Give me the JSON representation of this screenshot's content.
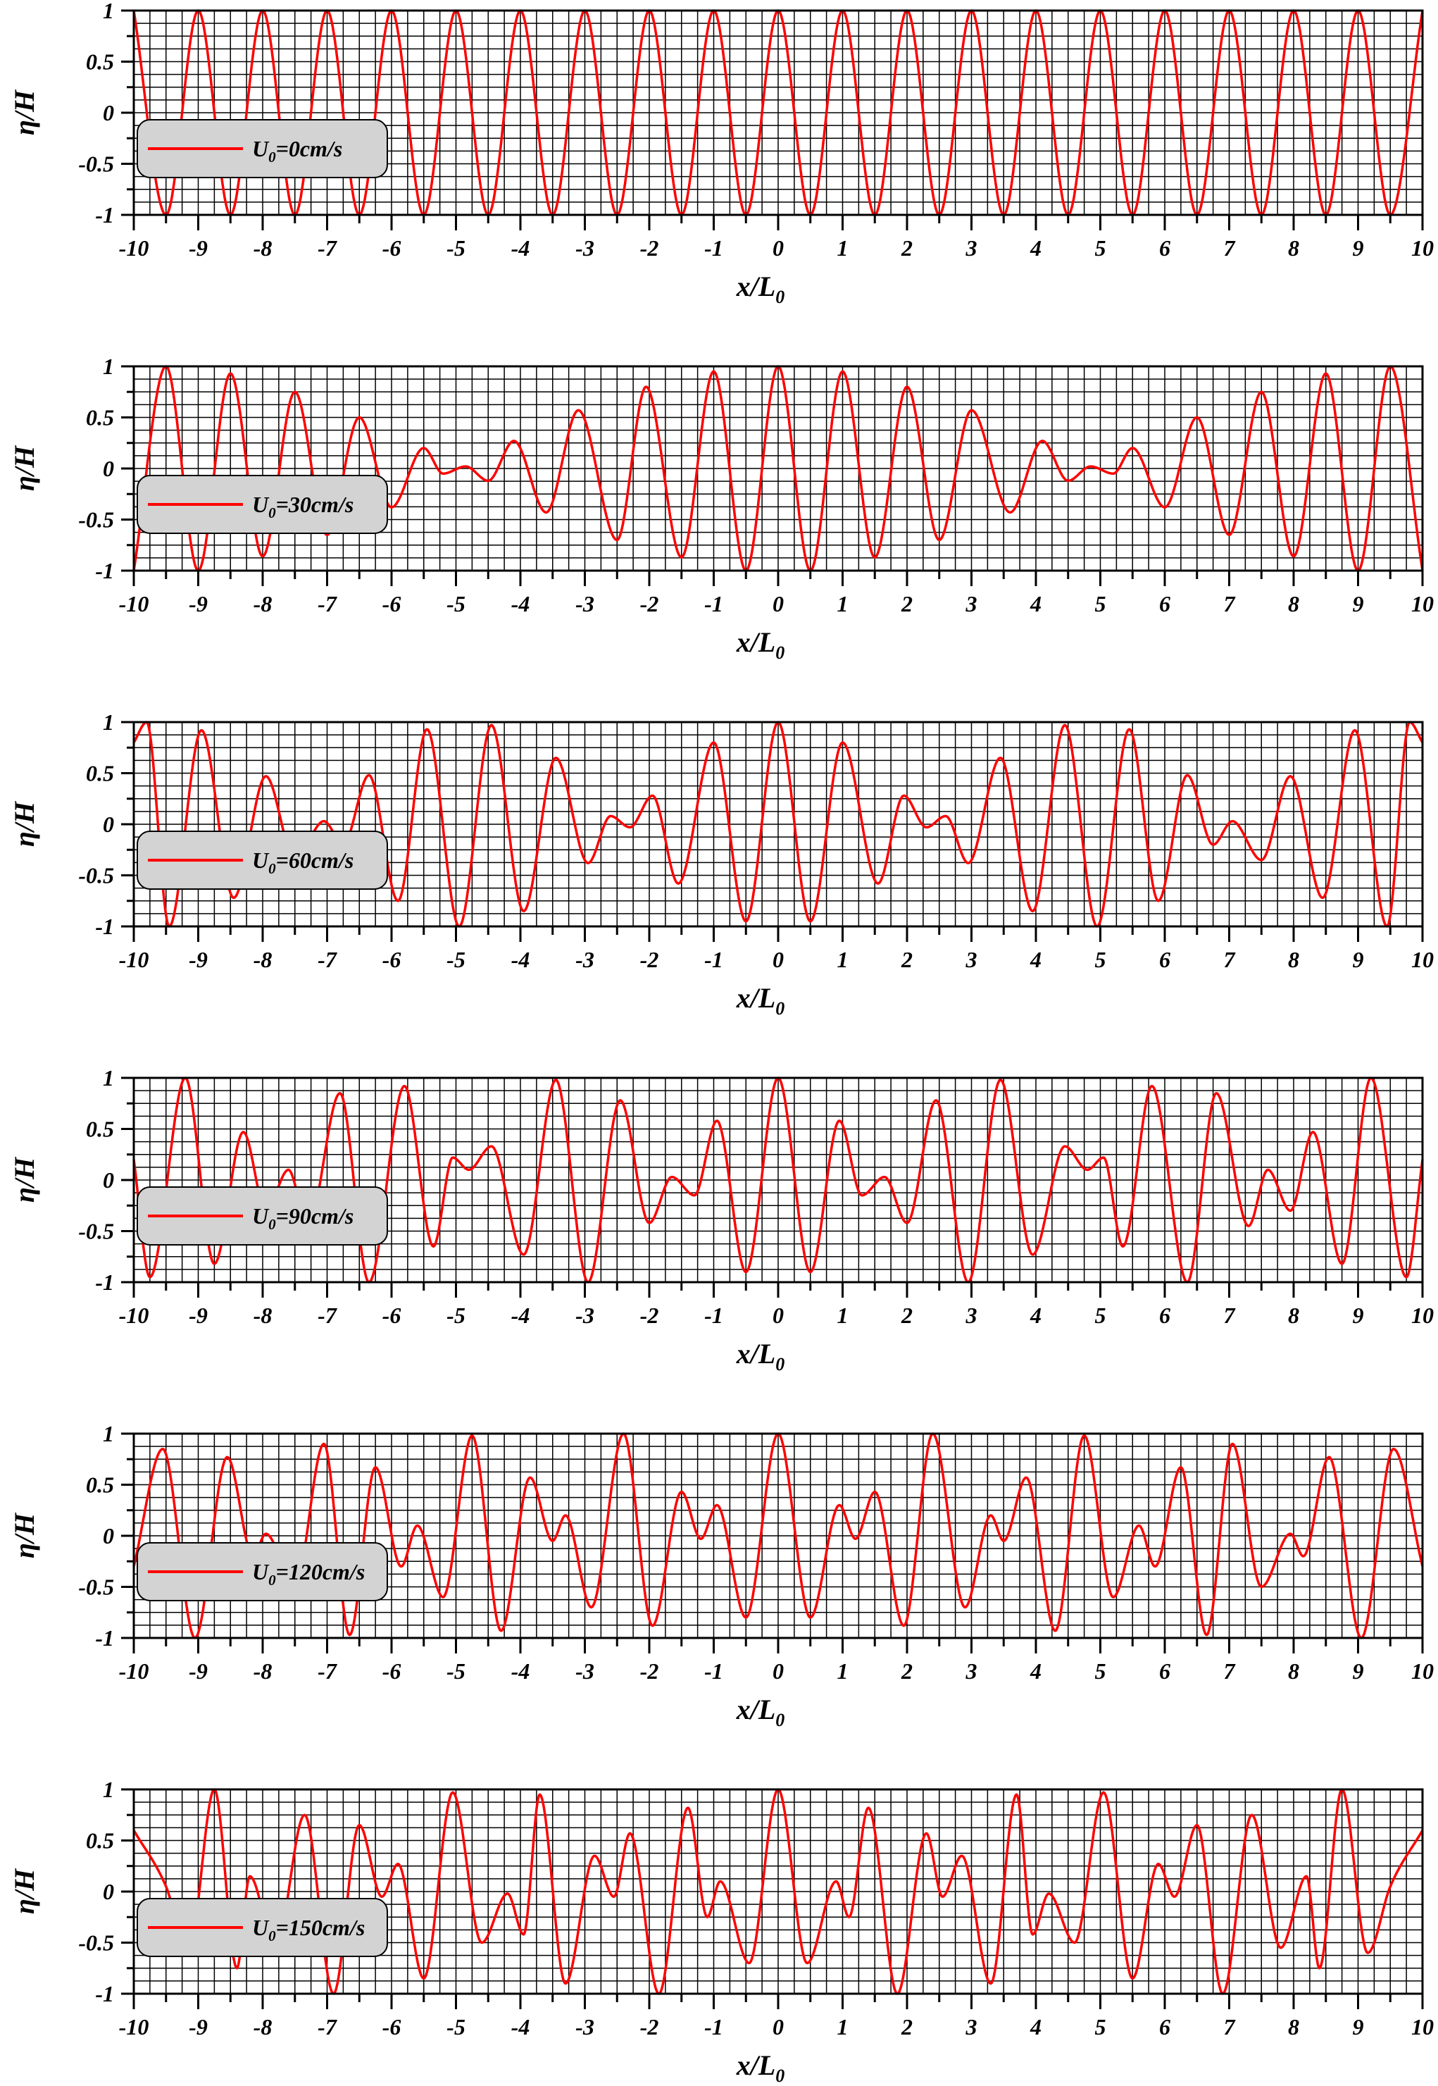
{
  "chart_data": [
    {
      "type": "line",
      "xlabel": "x/L",
      "xlabel_sub": "0",
      "ylabel": "η/H",
      "xlim": [
        -10,
        10
      ],
      "ylim": [
        -1,
        1
      ],
      "x_ticks": [
        "-10",
        "-9",
        "-8",
        "-7",
        "-6",
        "-5",
        "-4",
        "-3",
        "-2",
        "-1",
        "0",
        "1",
        "2",
        "3",
        "4",
        "5",
        "6",
        "7",
        "8",
        "9",
        "10"
      ],
      "y_ticks": [
        "1",
        "0.5",
        "0",
        "-0.5",
        "-1"
      ],
      "grid": true,
      "legend_position": "left",
      "series": [
        {
          "name": "U0=0cm/s",
          "legend_main": "U",
          "legend_sub": "0",
          "legend_rest": "=0cm/s",
          "color": "#ff0000",
          "x": [
            -10,
            -9.5,
            -9,
            -8.5,
            -8,
            -7.5,
            -7,
            -6.5,
            -6,
            -5.5,
            -5,
            -4.5,
            -4,
            -3.5,
            -3,
            -2.5,
            -2,
            -1.5,
            -1,
            -0.5,
            0,
            0.5,
            1,
            1.5,
            2,
            2.5,
            3,
            3.5,
            4,
            4.5,
            5,
            5.5,
            6,
            6.5,
            7,
            7.5,
            8,
            8.5,
            9,
            9.5,
            10
          ],
          "y": [
            1,
            -1,
            1,
            -1,
            1,
            -1,
            1,
            -1,
            1,
            -1,
            1,
            -1,
            1,
            -1,
            1,
            -1,
            1,
            -1,
            1,
            -1,
            1,
            -1,
            1,
            -1,
            1,
            -1,
            1,
            -1,
            1,
            -1,
            1,
            -1,
            1,
            -1,
            1,
            -1,
            1,
            -1,
            1,
            -1,
            1
          ]
        }
      ]
    },
    {
      "type": "line",
      "xlabel": "x/L",
      "xlabel_sub": "0",
      "ylabel": "η/H",
      "xlim": [
        -10,
        10
      ],
      "ylim": [
        -1,
        1
      ],
      "x_ticks": [
        "-10",
        "-9",
        "-8",
        "-7",
        "-6",
        "-5",
        "-4",
        "-3",
        "-2",
        "-1",
        "0",
        "1",
        "2",
        "3",
        "4",
        "5",
        "6",
        "7",
        "8",
        "9",
        "10"
      ],
      "y_ticks": [
        "1",
        "0.5",
        "0",
        "-0.5",
        "-1"
      ],
      "grid": true,
      "legend_position": "left",
      "series": [
        {
          "name": "U0=30cm/s",
          "legend_main": "U",
          "legend_sub": "0",
          "legend_rest": "=30cm/s",
          "color": "#ff0000",
          "x": [
            -10,
            -9.5,
            -9,
            -8.5,
            -8,
            -7.5,
            -7,
            -6.5,
            -6,
            -5.5,
            -5.2,
            -4.85,
            -4.5,
            -4.1,
            -3.6,
            -3.1,
            -2.5,
            -2.05,
            -1.5,
            -1,
            -0.5,
            0,
            0.5,
            1,
            1.5,
            2,
            2.5,
            3,
            3.6,
            4.1,
            4.5,
            4.85,
            5.2,
            5.5,
            6,
            6.5,
            7,
            7.5,
            8,
            8.5,
            9,
            9.5,
            10
          ],
          "y": [
            -1,
            1,
            -1,
            0.93,
            -0.86,
            0.75,
            -0.65,
            0.5,
            -0.38,
            0.2,
            -0.05,
            0.02,
            -0.12,
            0.27,
            -0.43,
            0.57,
            -0.7,
            0.8,
            -0.87,
            0.95,
            -1,
            1,
            -1,
            0.95,
            -0.87,
            0.8,
            -0.7,
            0.57,
            -0.43,
            0.27,
            -0.12,
            0.02,
            -0.05,
            0.2,
            -0.38,
            0.5,
            -0.65,
            0.75,
            -0.86,
            0.93,
            -1,
            1,
            -1
          ]
        }
      ]
    },
    {
      "type": "line",
      "xlabel": "x/L",
      "xlabel_sub": "0",
      "ylabel": "η/H",
      "xlim": [
        -10,
        10
      ],
      "ylim": [
        -1,
        1
      ],
      "x_ticks": [
        "-10",
        "-9",
        "-8",
        "-7",
        "-6",
        "-5",
        "-4",
        "-3",
        "-2",
        "-1",
        "0",
        "1",
        "2",
        "3",
        "4",
        "5",
        "6",
        "7",
        "8",
        "9",
        "10"
      ],
      "y_ticks": [
        "1",
        "0.5",
        "0",
        "-0.5",
        "-1"
      ],
      "grid": true,
      "legend_position": "left",
      "series": [
        {
          "name": "U0=60cm/s",
          "legend_main": "U",
          "legend_sub": "0",
          "legend_rest": "=60cm/s",
          "color": "#ff0000",
          "x": [
            -10,
            -9.8,
            -9.45,
            -8.95,
            -8.45,
            -7.95,
            -7.5,
            -7.05,
            -6.75,
            -6.35,
            -5.9,
            -5.45,
            -4.95,
            -4.45,
            -3.95,
            -3.45,
            -2.95,
            -2.6,
            -2.3,
            -1.95,
            -1.55,
            -1,
            -0.5,
            0,
            0.5,
            1,
            1.55,
            1.95,
            2.3,
            2.6,
            2.95,
            3.45,
            3.95,
            4.45,
            4.95,
            5.45,
            5.9,
            6.35,
            6.75,
            7.05,
            7.5,
            7.95,
            8.45,
            8.95,
            9.45,
            9.8,
            10
          ],
          "y": [
            0.8,
            1,
            -1,
            0.92,
            -0.72,
            0.47,
            -0.35,
            0.03,
            -0.2,
            0.48,
            -0.75,
            0.93,
            -1,
            0.97,
            -0.85,
            0.65,
            -0.38,
            0.08,
            -0.03,
            0.28,
            -0.58,
            0.8,
            -0.95,
            1,
            -0.95,
            0.8,
            -0.58,
            0.28,
            -0.03,
            0.08,
            -0.38,
            0.65,
            -0.85,
            0.97,
            -1,
            0.93,
            -0.75,
            0.48,
            -0.2,
            0.03,
            -0.35,
            0.47,
            -0.72,
            0.92,
            -1,
            1,
            0.8
          ]
        }
      ]
    },
    {
      "type": "line",
      "xlabel": "x/L",
      "xlabel_sub": "0",
      "ylabel": "η/H",
      "xlim": [
        -10,
        10
      ],
      "ylim": [
        -1,
        1
      ],
      "x_ticks": [
        "-10",
        "-9",
        "-8",
        "-7",
        "-6",
        "-5",
        "-4",
        "-3",
        "-2",
        "-1",
        "0",
        "1",
        "2",
        "3",
        "4",
        "5",
        "6",
        "7",
        "8",
        "9",
        "10"
      ],
      "y_ticks": [
        "1",
        "0.5",
        "0",
        "-0.5",
        "-1"
      ],
      "grid": true,
      "legend_position": "left",
      "series": [
        {
          "name": "U0=90cm/s",
          "legend_main": "U",
          "legend_sub": "0",
          "legend_rest": "=90cm/s",
          "color": "#ff0000",
          "x": [
            -10,
            -9.75,
            -9.2,
            -8.75,
            -8.3,
            -7.95,
            -7.6,
            -7.3,
            -6.8,
            -6.35,
            -5.8,
            -5.35,
            -5.05,
            -4.8,
            -4.45,
            -3.95,
            -3.45,
            -2.95,
            -2.45,
            -2,
            -1.65,
            -1.3,
            -0.95,
            -0.5,
            0,
            0.5,
            0.95,
            1.3,
            1.65,
            2,
            2.45,
            2.95,
            3.45,
            3.95,
            4.45,
            4.8,
            5.05,
            5.35,
            5.8,
            6.35,
            6.8,
            7.3,
            7.6,
            7.95,
            8.3,
            8.75,
            9.2,
            9.75,
            10
          ],
          "y": [
            0.2,
            -0.95,
            1,
            -0.82,
            0.47,
            -0.3,
            0.1,
            -0.45,
            0.85,
            -1,
            0.92,
            -0.65,
            0.22,
            0.1,
            0.33,
            -0.73,
            0.98,
            -1,
            0.78,
            -0.42,
            0.03,
            -0.15,
            0.58,
            -0.9,
            1,
            -0.9,
            0.58,
            -0.15,
            0.03,
            -0.42,
            0.78,
            -1,
            0.98,
            -0.73,
            0.33,
            0.1,
            0.22,
            -0.65,
            0.92,
            -1,
            0.85,
            -0.45,
            0.1,
            -0.3,
            0.47,
            -0.82,
            1,
            -0.95,
            0.2
          ]
        }
      ]
    },
    {
      "type": "line",
      "xlabel": "x/L",
      "xlabel_sub": "0",
      "ylabel": "η/H",
      "xlim": [
        -10,
        10
      ],
      "ylim": [
        -1,
        1
      ],
      "x_ticks": [
        "-10",
        "-9",
        "-8",
        "-7",
        "-6",
        "-5",
        "-4",
        "-3",
        "-2",
        "-1",
        "0",
        "1",
        "2",
        "3",
        "4",
        "5",
        "6",
        "7",
        "8",
        "9",
        "10"
      ],
      "y_ticks": [
        "1",
        "0.5",
        "0",
        "-0.5",
        "-1"
      ],
      "grid": true,
      "legend_position": "left",
      "series": [
        {
          "name": "U0=120cm/s",
          "legend_main": "U",
          "legend_sub": "0",
          "legend_rest": "=120cm/s",
          "color": "#ff0000",
          "x": [
            -10,
            -9.55,
            -9.05,
            -8.55,
            -8.15,
            -7.95,
            -7.5,
            -7.05,
            -6.65,
            -6.25,
            -5.85,
            -5.6,
            -5.2,
            -4.75,
            -4.3,
            -3.85,
            -3.5,
            -3.3,
            -2.9,
            -2.4,
            -1.95,
            -1.5,
            -1.2,
            -0.95,
            -0.5,
            0,
            0.5,
            0.95,
            1.2,
            1.5,
            1.95,
            2.4,
            2.9,
            3.3,
            3.5,
            3.85,
            4.3,
            4.75,
            5.2,
            5.6,
            5.85,
            6.25,
            6.65,
            7.05,
            7.5,
            7.95,
            8.15,
            8.55,
            9.05,
            9.55,
            10
          ],
          "y": [
            -0.3,
            0.85,
            -1,
            0.77,
            -0.2,
            0.02,
            -0.5,
            0.9,
            -0.97,
            0.67,
            -0.3,
            0.1,
            -0.6,
            0.98,
            -0.93,
            0.57,
            -0.05,
            0.2,
            -0.7,
            1,
            -0.88,
            0.43,
            -0.03,
            0.3,
            -0.8,
            1,
            -0.8,
            0.3,
            -0.03,
            0.43,
            -0.88,
            1,
            -0.7,
            0.2,
            -0.05,
            0.57,
            -0.93,
            0.98,
            -0.6,
            0.1,
            -0.3,
            0.67,
            -0.97,
            0.9,
            -0.5,
            0.02,
            -0.2,
            0.77,
            -1,
            0.85,
            -0.3
          ]
        }
      ]
    },
    {
      "type": "line",
      "xlabel": "x/L",
      "xlabel_sub": "0",
      "ylabel": "η/H",
      "xlim": [
        -10,
        10
      ],
      "ylim": [
        -1,
        1
      ],
      "x_ticks": [
        "-10",
        "-9",
        "-8",
        "-7",
        "-6",
        "-5",
        "-4",
        "-3",
        "-2",
        "-1",
        "0",
        "1",
        "2",
        "3",
        "4",
        "5",
        "6",
        "7",
        "8",
        "9",
        "10"
      ],
      "y_ticks": [
        "1",
        "0.5",
        "0",
        "-0.5",
        "-1"
      ],
      "grid": true,
      "legend_position": "left",
      "series": [
        {
          "name": "U0=150cm/s",
          "legend_main": "U",
          "legend_sub": "0",
          "legend_rest": "=150cm/s",
          "color": "#ff0000",
          "x": [
            -10,
            -9.5,
            -9.15,
            -8.75,
            -8.4,
            -8.2,
            -7.8,
            -7.35,
            -6.9,
            -6.5,
            -6.15,
            -5.9,
            -5.5,
            -5.05,
            -4.6,
            -4.2,
            -3.95,
            -3.7,
            -3.3,
            -2.85,
            -2.55,
            -2.3,
            -1.85,
            -1.4,
            -1.1,
            -0.9,
            -0.45,
            0,
            0.45,
            0.9,
            1.1,
            1.4,
            1.85,
            2.3,
            2.55,
            2.85,
            3.3,
            3.7,
            3.95,
            4.2,
            4.6,
            5.05,
            5.5,
            5.9,
            6.15,
            6.5,
            6.9,
            7.35,
            7.8,
            8.2,
            8.4,
            8.75,
            9.15,
            9.5,
            10
          ],
          "y": [
            0.6,
            0.05,
            -0.6,
            1,
            -0.75,
            0.15,
            -0.55,
            0.75,
            -1,
            0.65,
            -0.05,
            0.27,
            -0.85,
            0.97,
            -0.5,
            -0.02,
            -0.42,
            0.95,
            -0.9,
            0.35,
            -0.05,
            0.57,
            -1,
            0.82,
            -0.25,
            0.1,
            -0.7,
            1,
            -0.7,
            0.1,
            -0.25,
            0.82,
            -1,
            0.57,
            -0.05,
            0.35,
            -0.9,
            0.95,
            -0.42,
            -0.02,
            -0.5,
            0.97,
            -0.85,
            0.27,
            -0.05,
            0.65,
            -1,
            0.75,
            -0.55,
            0.15,
            -0.75,
            1,
            -0.6,
            0.05,
            0.6
          ]
        }
      ]
    }
  ]
}
